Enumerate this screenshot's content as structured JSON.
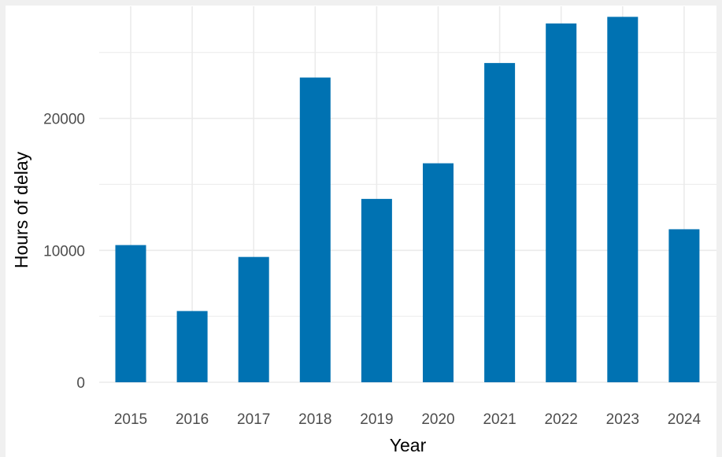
{
  "chart_data": {
    "type": "bar",
    "categories": [
      "2015",
      "2016",
      "2017",
      "2018",
      "2019",
      "2020",
      "2021",
      "2022",
      "2023",
      "2024"
    ],
    "values": [
      10400,
      5400,
      9500,
      23100,
      13900,
      16600,
      24200,
      27200,
      27700,
      11600
    ],
    "xlabel": "Year",
    "ylabel": "Hours of delay",
    "ylim": [
      0,
      28500
    ],
    "yticks": [
      0,
      10000,
      20000
    ],
    "ytick_labels": [
      "0",
      "10000",
      "20000"
    ],
    "grid": true,
    "bar_color": "#0072b2",
    "grid_color": "#ebebeb",
    "background": "#ffffff"
  }
}
